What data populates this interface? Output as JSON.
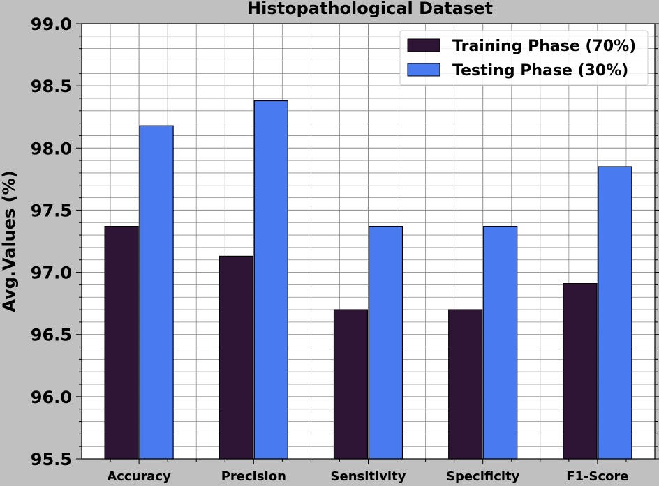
{
  "chart_data": {
    "type": "bar",
    "title": "Histopathological Dataset",
    "xlabel": "",
    "ylabel": "Avg.Values (%)",
    "ylim": [
      95.5,
      99.0
    ],
    "yticks": [
      "95.5",
      "96.0",
      "96.5",
      "97.0",
      "97.5",
      "98.0",
      "98.5",
      "99.0"
    ],
    "categories": [
      "Accuracy",
      "Precision",
      "Sensitivity",
      "Specificity",
      "F1-Score"
    ],
    "series": [
      {
        "name": "Training Phase (70%)",
        "color": "#2e1535",
        "values": [
          97.37,
          97.13,
          96.7,
          96.7,
          96.91
        ]
      },
      {
        "name": "Testing Phase (30%)",
        "color": "#4a7af0",
        "values": [
          98.18,
          98.38,
          97.37,
          97.37,
          97.85
        ]
      }
    ],
    "grid": true,
    "minor_grid": true,
    "legend_position": "top-right",
    "colors": {
      "figure_background": "#c0c0c0",
      "plot_background": "#ffffff",
      "grid": "#8c8c8c"
    }
  }
}
